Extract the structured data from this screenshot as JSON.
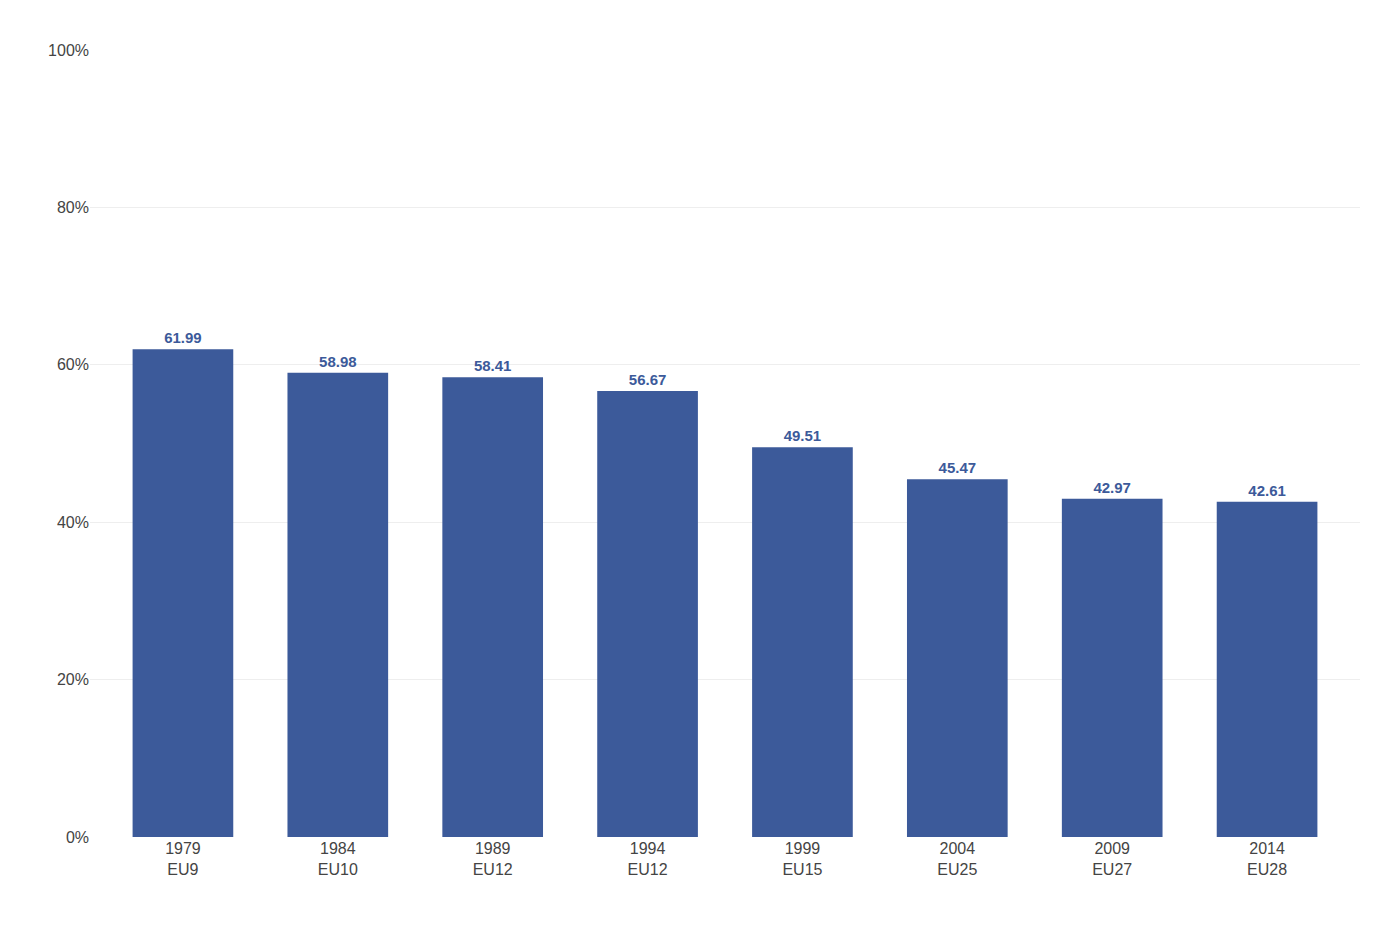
{
  "chart_data": {
    "type": "bar",
    "categories": [
      "1979\nEU9",
      "1984\nEU10",
      "1989\nEU12",
      "1994\nEU12",
      "1999\nEU15",
      "2004\nEU25",
      "2009\nEU27",
      "2014\nEU28"
    ],
    "values": [
      61.99,
      58.98,
      58.41,
      56.67,
      49.51,
      45.47,
      42.97,
      42.61
    ],
    "color": "#3C5A9A",
    "ylim": [
      0,
      100
    ],
    "yticks": [
      {
        "value": 0,
        "label": "0%"
      },
      {
        "value": 20,
        "label": "20%"
      },
      {
        "value": 40,
        "label": "40%"
      },
      {
        "value": 60,
        "label": "60%"
      },
      {
        "value": 80,
        "label": "80%"
      },
      {
        "value": 100,
        "label": "100%"
      }
    ],
    "grid": true,
    "data_labels": true
  }
}
